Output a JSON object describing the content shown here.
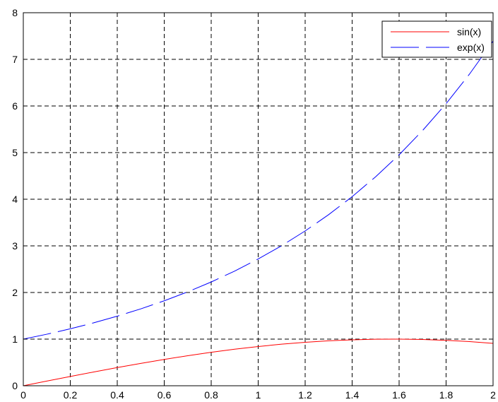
{
  "chart_data": {
    "type": "line",
    "title": "",
    "xlabel": "",
    "ylabel": "",
    "xlim": [
      0,
      2
    ],
    "ylim": [
      0,
      8
    ],
    "xticks": [
      0,
      0.2,
      0.4,
      0.6,
      0.8,
      1,
      1.2,
      1.4,
      1.6,
      1.8,
      2
    ],
    "xtick_labels": [
      "0",
      "0.2",
      "0.4",
      "0.6",
      "0.8",
      "1",
      "1.2",
      "1.4",
      "1.6",
      "1.8",
      "2"
    ],
    "yticks": [
      0,
      1,
      2,
      3,
      4,
      5,
      6,
      7,
      8
    ],
    "ytick_labels": [
      "0",
      "1",
      "2",
      "3",
      "4",
      "5",
      "6",
      "7",
      "8"
    ],
    "grid": true,
    "grid_style": "dashed",
    "legend_position": "top-right",
    "x": [
      0,
      0.1,
      0.2,
      0.3,
      0.4,
      0.5,
      0.6,
      0.7,
      0.8,
      0.9,
      1.0,
      1.1,
      1.2,
      1.3,
      1.4,
      1.5,
      1.6,
      1.7,
      1.8,
      1.9,
      2.0
    ],
    "series": [
      {
        "name": "sin(x)",
        "color": "#ff0000",
        "line_style": "solid",
        "values": [
          0,
          0.0998,
          0.1987,
          0.2955,
          0.3894,
          0.4794,
          0.5646,
          0.6442,
          0.7174,
          0.7833,
          0.8415,
          0.8912,
          0.932,
          0.9636,
          0.9854,
          0.9975,
          0.9996,
          0.9917,
          0.9738,
          0.9463,
          0.9093
        ]
      },
      {
        "name": "exp(x)",
        "color": "#0000ff",
        "line_style": "dashed",
        "values": [
          1,
          1.1052,
          1.2214,
          1.3499,
          1.4918,
          1.6487,
          1.8221,
          2.0138,
          2.2255,
          2.4596,
          2.7183,
          3.0042,
          3.3201,
          3.6693,
          4.0552,
          4.4817,
          4.953,
          5.4739,
          6.0496,
          6.6859,
          7.3891
        ]
      }
    ]
  }
}
